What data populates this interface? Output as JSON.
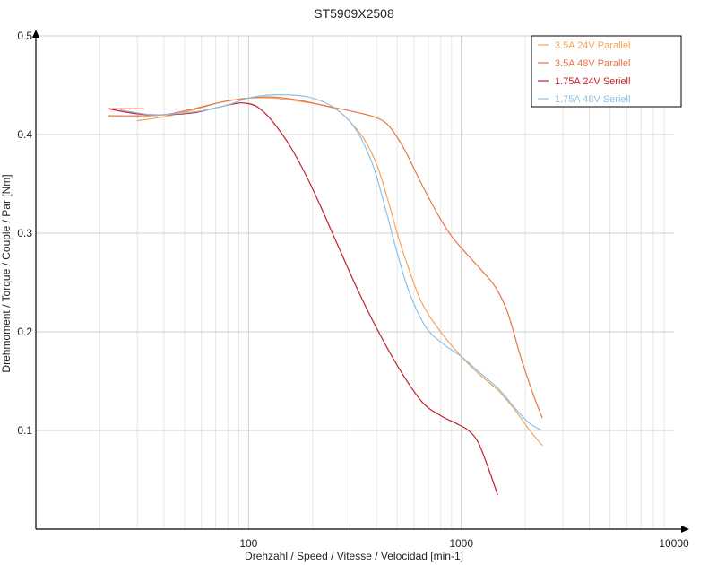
{
  "chart_data": {
    "type": "line",
    "title": "ST5909X2508",
    "xlabel": "Drehzahl / Speed / Vitesse / Velocidad [min-1]",
    "ylabel": "Drehmoment / Torque / Couple / Par [Nm]",
    "x_scale": "log",
    "xlim": [
      10,
      10000
    ],
    "ylim": [
      0,
      0.5
    ],
    "x_ticks": [
      {
        "value": 100,
        "label": "100"
      },
      {
        "value": 1000,
        "label": "1000"
      },
      {
        "value": 10000,
        "label": "10000"
      }
    ],
    "y_ticks": [
      {
        "value": 0.1,
        "label": "0.1"
      },
      {
        "value": 0.2,
        "label": "0.2"
      },
      {
        "value": 0.3,
        "label": "0.3"
      },
      {
        "value": 0.4,
        "label": "0.4"
      },
      {
        "value": 0.5,
        "label": "0.5"
      }
    ],
    "grid": true,
    "legend_position": "top-right",
    "series": [
      {
        "name": "3.5A  24V  Parallel",
        "color": "#f5a45a",
        "points": [
          [
            30,
            0.414
          ],
          [
            40,
            0.418
          ],
          [
            55,
            0.425
          ],
          [
            75,
            0.433
          ],
          [
            100,
            0.437
          ],
          [
            130,
            0.437
          ],
          [
            170,
            0.434
          ],
          [
            220,
            0.43
          ],
          [
            260,
            0.425
          ],
          [
            300,
            0.413
          ],
          [
            350,
            0.395
          ],
          [
            400,
            0.37
          ],
          [
            450,
            0.335
          ],
          [
            500,
            0.3
          ],
          [
            550,
            0.272
          ],
          [
            650,
            0.23
          ],
          [
            800,
            0.2
          ],
          [
            1000,
            0.175
          ],
          [
            1200,
            0.158
          ],
          [
            1500,
            0.14
          ],
          [
            1800,
            0.12
          ],
          [
            2100,
            0.1
          ],
          [
            2400,
            0.085
          ]
        ]
      },
      {
        "name": "3.5A  48V  Parallel",
        "color": "#e67647",
        "points": [
          [
            22,
            0.419
          ],
          [
            30,
            0.419
          ],
          [
            40,
            0.42
          ],
          [
            55,
            0.426
          ],
          [
            75,
            0.433
          ],
          [
            100,
            0.437
          ],
          [
            130,
            0.438
          ],
          [
            170,
            0.435
          ],
          [
            220,
            0.43
          ],
          [
            270,
            0.426
          ],
          [
            330,
            0.422
          ],
          [
            400,
            0.417
          ],
          [
            460,
            0.408
          ],
          [
            540,
            0.385
          ],
          [
            650,
            0.35
          ],
          [
            780,
            0.318
          ],
          [
            900,
            0.297
          ],
          [
            1050,
            0.28
          ],
          [
            1250,
            0.262
          ],
          [
            1450,
            0.245
          ],
          [
            1650,
            0.22
          ],
          [
            1900,
            0.175
          ],
          [
            2150,
            0.14
          ],
          [
            2400,
            0.113
          ]
        ]
      },
      {
        "name": "1.75A  24V  Seriell",
        "color": "#c0202a",
        "points": [
          [
            22,
            0.426
          ],
          [
            30,
            0.421
          ],
          [
            40,
            0.42
          ],
          [
            55,
            0.422
          ],
          [
            70,
            0.427
          ],
          [
            85,
            0.431
          ],
          [
            95,
            0.432
          ],
          [
            110,
            0.428
          ],
          [
            130,
            0.413
          ],
          [
            160,
            0.385
          ],
          [
            200,
            0.345
          ],
          [
            260,
            0.29
          ],
          [
            330,
            0.24
          ],
          [
            420,
            0.195
          ],
          [
            530,
            0.157
          ],
          [
            660,
            0.128
          ],
          [
            800,
            0.115
          ],
          [
            950,
            0.107
          ],
          [
            1080,
            0.1
          ],
          [
            1200,
            0.088
          ],
          [
            1350,
            0.06
          ],
          [
            1480,
            0.035
          ]
        ]
      },
      {
        "name": "1.75A  48V  Seriell",
        "color": "#8ec2e8",
        "points": [
          [
            25,
            0.425
          ],
          [
            35,
            0.42
          ],
          [
            45,
            0.421
          ],
          [
            60,
            0.424
          ],
          [
            80,
            0.43
          ],
          [
            100,
            0.437
          ],
          [
            125,
            0.44
          ],
          [
            160,
            0.44
          ],
          [
            200,
            0.437
          ],
          [
            250,
            0.428
          ],
          [
            300,
            0.413
          ],
          [
            340,
            0.395
          ],
          [
            390,
            0.365
          ],
          [
            440,
            0.325
          ],
          [
            500,
            0.28
          ],
          [
            570,
            0.24
          ],
          [
            680,
            0.205
          ],
          [
            830,
            0.187
          ],
          [
            1000,
            0.175
          ],
          [
            1200,
            0.16
          ],
          [
            1500,
            0.142
          ],
          [
            1800,
            0.122
          ],
          [
            2100,
            0.107
          ],
          [
            2400,
            0.1
          ]
        ]
      }
    ],
    "series_pre_segments": [
      {
        "series_index": 2,
        "points": [
          [
            22,
            0.426
          ],
          [
            32,
            0.426
          ]
        ]
      }
    ]
  }
}
